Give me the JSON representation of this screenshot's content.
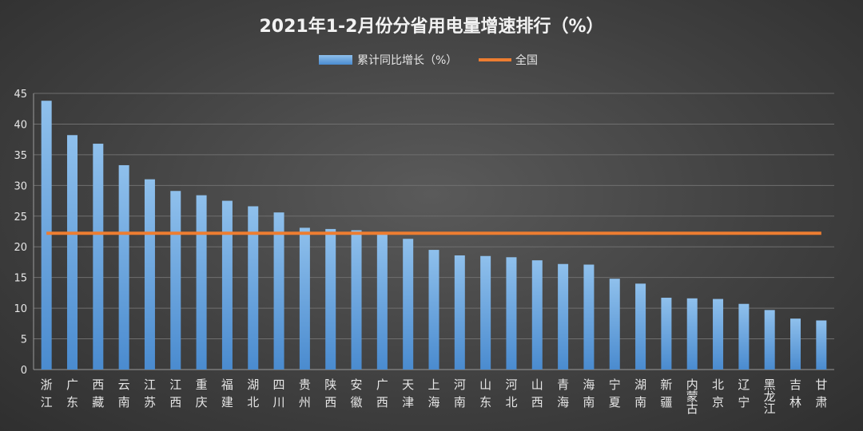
{
  "chart_data": {
    "type": "bar",
    "title": "2021年1-2月份分省用电量增速排行（%）",
    "categories": [
      "浙江",
      "广东",
      "西藏",
      "云南",
      "江苏",
      "江西",
      "重庆",
      "福建",
      "湖北",
      "四川",
      "贵州",
      "陕西",
      "安徽",
      "广西",
      "天津",
      "上海",
      "河南",
      "山东",
      "河北",
      "山西",
      "青海",
      "海南",
      "宁夏",
      "湖南",
      "新疆",
      "内蒙古",
      "北京",
      "辽宁",
      "黑龙江",
      "吉林",
      "甘肃"
    ],
    "series": [
      {
        "name": "累计同比增长（%）",
        "values": [
          43.8,
          38.2,
          36.8,
          33.3,
          31.0,
          29.1,
          28.4,
          27.5,
          26.6,
          25.6,
          23.1,
          22.9,
          22.7,
          22.0,
          21.3,
          19.5,
          18.6,
          18.5,
          18.3,
          17.8,
          17.2,
          17.1,
          14.8,
          14.0,
          11.7,
          11.6,
          11.5,
          10.7,
          9.7,
          8.3,
          8.0
        ]
      }
    ],
    "reference_line": {
      "name": "全国",
      "value": 22.2,
      "color": "#ed7d31"
    },
    "ylim": [
      0,
      45
    ],
    "yticks": [
      0,
      5,
      10,
      15,
      20,
      25,
      30,
      35,
      40,
      45
    ],
    "grid": true,
    "legend_position": "top-center",
    "colors": {
      "bar": "#5b9bd5",
      "bar_light": "#86b8e6",
      "line": "#ed7d31"
    }
  }
}
